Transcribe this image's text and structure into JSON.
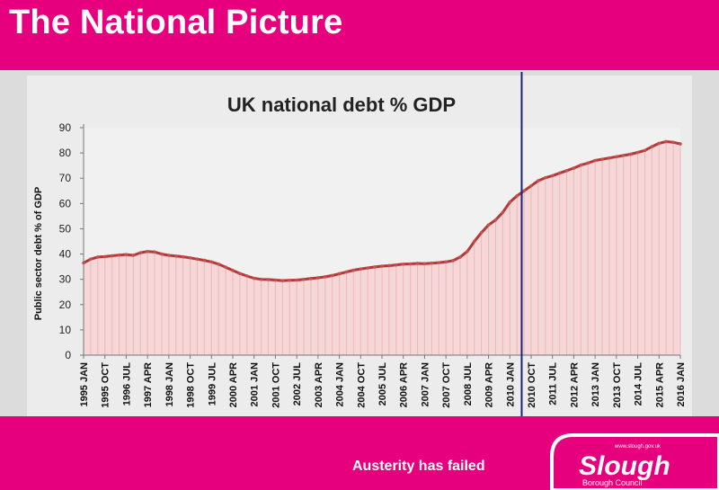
{
  "slide": {
    "title": "The National Picture",
    "footer": "Austerity has failed",
    "logo_text": "Slough",
    "logo_subtext": "Borough Council",
    "logo_url": "www.slough.gov.uk"
  },
  "colors": {
    "brand_magenta": "#e6007e",
    "series_line": "#b03a3a",
    "series_fill": "#f6d7d7",
    "marker_line": "#1a237e"
  },
  "chart_data": {
    "type": "area",
    "title": "UK national debt % GDP",
    "xlabel": "",
    "ylabel": "Public sector debt % of GDP",
    "ylim": [
      0,
      90
    ],
    "yticks": [
      0,
      10,
      20,
      30,
      40,
      50,
      60,
      70,
      80,
      90
    ],
    "grid": false,
    "legend": "none",
    "x_tick_labels": [
      "1995 JAN",
      "1995 OCT",
      "1996 JUL",
      "1997 APR",
      "1998 JAN",
      "1998 OCT",
      "1999 JUL",
      "2000 APR",
      "2001 JAN",
      "2001 OCT",
      "2002 JUL",
      "2003 APR",
      "2004 JAN",
      "2004 OCT",
      "2005 JUL",
      "2006 APR",
      "2007 JAN",
      "2007 OCT",
      "2008 JUL",
      "2009 APR",
      "2010 JAN",
      "2010 OCT",
      "2011 JUL",
      "2012 APR",
      "2013 JAN",
      "2013 OCT",
      "2014 JUL",
      "2015 APR",
      "2016 JAN"
    ],
    "vertical_marker": {
      "x": "2010 JUN"
    },
    "series": [
      {
        "x": [
          "1995 JAN",
          "1995 APR",
          "1995 JUL",
          "1995 OCT",
          "1996 JAN",
          "1996 APR",
          "1996 JUL",
          "1996 OCT",
          "1997 JAN",
          "1997 APR",
          "1997 JUL",
          "1997 OCT",
          "1998 JAN",
          "1998 APR",
          "1998 JUL",
          "1998 OCT",
          "1999 JAN",
          "1999 APR",
          "1999 JUL",
          "1999 OCT",
          "2000 JAN",
          "2000 APR",
          "2000 JUL",
          "2000 OCT",
          "2001 JAN",
          "2001 APR",
          "2001 JUL",
          "2001 OCT",
          "2002 JAN",
          "2002 APR",
          "2002 JUL",
          "2002 OCT",
          "2003 JAN",
          "2003 APR",
          "2003 JUL",
          "2003 OCT",
          "2004 JAN",
          "2004 APR",
          "2004 JUL",
          "2004 OCT",
          "2005 JAN",
          "2005 APR",
          "2005 JUL",
          "2005 OCT",
          "2006 JAN",
          "2006 APR",
          "2006 JUL",
          "2006 OCT",
          "2007 JAN",
          "2007 APR",
          "2007 JUL",
          "2007 OCT",
          "2008 JAN",
          "2008 APR",
          "2008 JUL",
          "2008 OCT",
          "2009 JAN",
          "2009 APR",
          "2009 JUL",
          "2009 OCT",
          "2010 JAN",
          "2010 APR",
          "2010 JUL",
          "2010 OCT",
          "2011 JAN",
          "2011 APR",
          "2011 JUL",
          "2011 OCT",
          "2012 JAN",
          "2012 APR",
          "2012 JUL",
          "2012 OCT",
          "2013 JAN",
          "2013 APR",
          "2013 JUL",
          "2013 OCT",
          "2014 JAN",
          "2014 APR",
          "2014 JUL",
          "2014 OCT",
          "2015 JAN",
          "2015 APR",
          "2015 JUL",
          "2015 OCT",
          "2016 JAN"
        ],
        "values": [
          36.5,
          38.0,
          38.8,
          39.0,
          39.3,
          39.6,
          39.8,
          39.5,
          40.5,
          41.0,
          40.8,
          40.0,
          39.5,
          39.2,
          38.9,
          38.5,
          38.0,
          37.5,
          36.9,
          36.0,
          34.8,
          33.5,
          32.3,
          31.3,
          30.4,
          30.0,
          29.9,
          29.7,
          29.5,
          29.6,
          29.7,
          30.0,
          30.3,
          30.6,
          31.0,
          31.5,
          32.2,
          32.9,
          33.6,
          34.1,
          34.5,
          34.9,
          35.2,
          35.4,
          35.7,
          36.0,
          36.1,
          36.3,
          36.2,
          36.4,
          36.6,
          36.9,
          37.4,
          38.8,
          41.0,
          45.0,
          48.5,
          51.5,
          53.5,
          56.5,
          60.5,
          63.0,
          65.0,
          67.0,
          69.0,
          70.2,
          71.0,
          72.0,
          73.0,
          74.0,
          75.2,
          76.0,
          77.0,
          77.5,
          78.0,
          78.5,
          79.0,
          79.5,
          80.2,
          81.0,
          82.5,
          83.8,
          84.5,
          84.2,
          83.6
        ]
      }
    ]
  }
}
